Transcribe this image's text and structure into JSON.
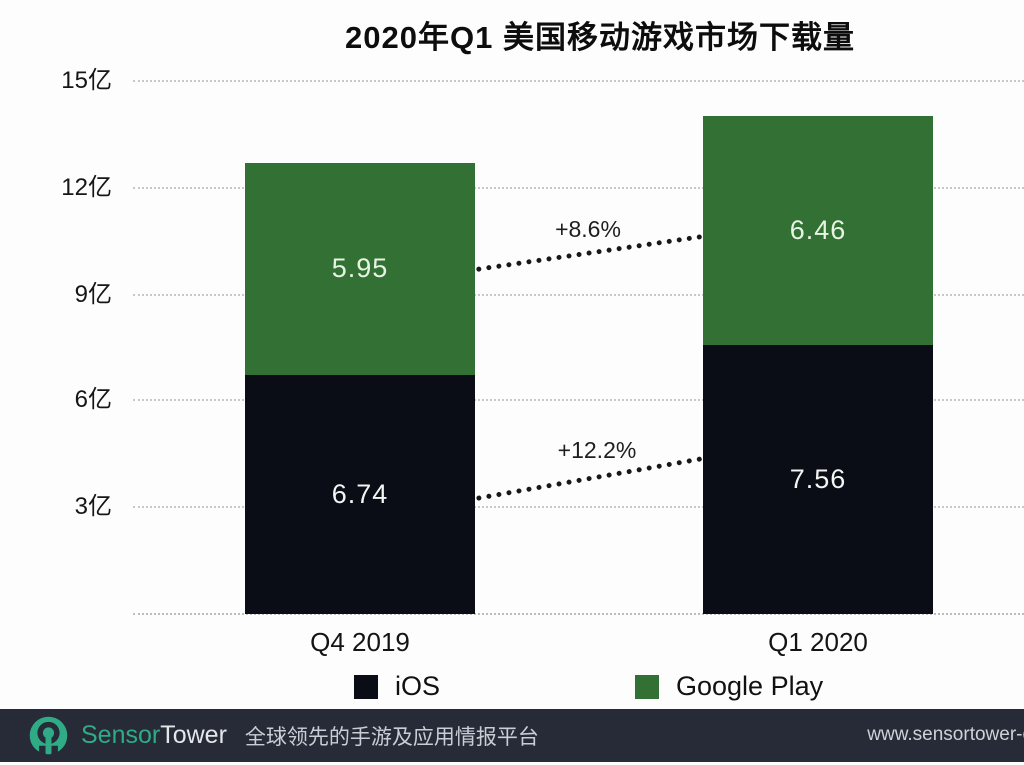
{
  "title": "2020年Q1 美国移动游戏市场下载量",
  "chart_data": {
    "type": "bar",
    "stacked": true,
    "title": "2020年Q1 美国移动游戏市场下载量",
    "categories": [
      "Q4 2019",
      "Q1 2020"
    ],
    "series": [
      {
        "name": "iOS",
        "color": "#0a0d16",
        "values": [
          6.74,
          7.56
        ]
      },
      {
        "name": "Google Play",
        "color": "#327033",
        "values": [
          5.95,
          6.46
        ]
      }
    ],
    "unit": "亿",
    "y_tick_labels": [
      "15亿",
      "12亿",
      "9亿",
      "6亿",
      "3亿"
    ],
    "y_tick_values": [
      15,
      12,
      9,
      6,
      3
    ],
    "ylim": [
      0,
      15.75
    ],
    "grid": "horizontal-dotted",
    "legend_position": "bottom",
    "annotations": [
      {
        "label": "+8.6%",
        "series": "Google Play",
        "from_category": "Q4 2019",
        "to_category": "Q1 2020"
      },
      {
        "label": "+12.2%",
        "series": "iOS",
        "from_category": "Q4 2019",
        "to_category": "Q1 2020"
      }
    ]
  },
  "footer": {
    "brand_sensor": "Sensor",
    "brand_tower": "Tower",
    "tagline": "全球领先的手游及应用情报平台",
    "url": "www.sensortower-c",
    "background": "#262b37",
    "accent": "#2fab85"
  },
  "colors": {
    "ios": "#0a0d16",
    "google_play": "#327033",
    "background": "#ffffff"
  }
}
